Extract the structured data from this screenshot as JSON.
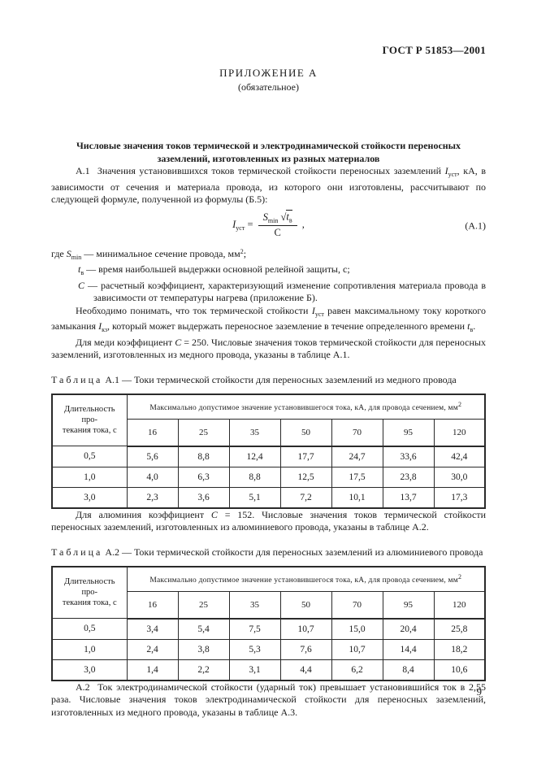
{
  "header": {
    "standard": "ГОСТ Р 51853—2001"
  },
  "appendix": {
    "title": "ПРИЛОЖЕНИЕ А",
    "subtitle": "(обязательное)"
  },
  "section_title": {
    "text": "Числовые значения токов термической и электродинамической стойкости переносных заземлений, изготовленных из разных материалов"
  },
  "para_a1": {
    "p1": "А.1  Значения установившихся токов термической стойкости переносных заземлений ",
    "v1": "I",
    "s1": "уст",
    "p2": ", кА, в зависимости от сечения и материала провода, из которого они изготовлены, рассчитывают по следующей формуле, полученной из формулы (Б.5):"
  },
  "formula": {
    "lhs_var": "I",
    "lhs_sub": "уст",
    "equals": " = ",
    "num_var": "S",
    "num_sub": "min",
    "radical": "√",
    "t_var": "t",
    "t_sub": "в",
    "den": "C",
    "comma": " ,",
    "label": "(А.1)"
  },
  "where": {
    "w1_pre": "где ",
    "w1_var": "S",
    "w1_sub": "min",
    "w1_text": " — минимальное сечение провода, мм",
    "w1_sup": "2",
    "w1_end": ";",
    "w2_var": "t",
    "w2_sub": "в",
    "w2_text": " — время наибольшей выдержки основной релейной защиты, с;",
    "w3_var": "С",
    "w3_text": " — расчетный коэффициент, характеризующий изменение сопротивления материала провода в зависимости от температуры нагрева (приложение Б)."
  },
  "para_note": {
    "p1": "Необходимо понимать, что ток термической стойкости ",
    "v1": "I",
    "s1": "уст",
    "p2": " равен максимальному току короткого замыкания ",
    "v2": "I",
    "s2": "кз",
    "p3": ", который может выдержать переносное заземление в течение определенного времени ",
    "v3": "t",
    "s3": "в",
    "p4": "."
  },
  "para_copper": {
    "p1": "Для меди коэффициент ",
    "v": "С",
    "p2": " = 250. Числовые значения токов термической стойкости для переносных заземлений, изготовленных из медного провода, указаны в таблице А.1."
  },
  "table_a1": {
    "caption_word": "Таблица",
    "caption_num": "А.1",
    "caption_rest": "— Токи термической стойкости для переносных заземлений из медного провода",
    "col0_line1": "Длительность про-",
    "col0_line2": "текания тока, с",
    "span_header": "Максимально допустимое значение установившегося тока, кА, для провода сечением, мм",
    "span_header_sup": "2",
    "sections": [
      "16",
      "25",
      "35",
      "50",
      "70",
      "95",
      "120"
    ],
    "rows": [
      [
        "0,5",
        "5,6",
        "8,8",
        "12,4",
        "17,7",
        "24,7",
        "33,6",
        "42,4"
      ],
      [
        "1,0",
        "4,0",
        "6,3",
        "8,8",
        "12,5",
        "17,5",
        "23,8",
        "30,0"
      ],
      [
        "3,0",
        "2,3",
        "3,6",
        "5,1",
        "7,2",
        "10,1",
        "13,7",
        "17,3"
      ]
    ]
  },
  "para_aluminum": {
    "p1": "Для алюминия коэффициент ",
    "v": "С",
    "p2": " = 152. Числовые значения токов термической стойкости переносных заземлений, изготовленных из алюминиевого провода, указаны в таблице А.2."
  },
  "table_a2": {
    "caption_word": "Таблица",
    "caption_num": "А.2",
    "caption_rest": "— Токи термической стойкости для переносных заземлений из алюминиевого провода",
    "col0_line1": "Длительность про-",
    "col0_line2": "текания тока, с",
    "span_header": "Максимально допустимое значение установившегося тока, кА, для провода сечением, мм",
    "span_header_sup": "2",
    "sections": [
      "16",
      "25",
      "35",
      "50",
      "70",
      "95",
      "120"
    ],
    "rows": [
      [
        "0,5",
        "3,4",
        "5,4",
        "7,5",
        "10,7",
        "15,0",
        "20,4",
        "25,8"
      ],
      [
        "1,0",
        "2,4",
        "3,8",
        "5,3",
        "7,6",
        "10,7",
        "14,4",
        "18,2"
      ],
      [
        "3,0",
        "1,4",
        "2,2",
        "3,1",
        "4,4",
        "6,2",
        "8,4",
        "10,6"
      ]
    ]
  },
  "para_a2": {
    "text": "А.2  Ток электродинамической стойкости (ударный ток) превышает установившийся ток в 2,55 раза. Числовые значения токов электродинамической стойкости для переносных заземлений, изготовленных из медного провода, указаны в таблице А.3."
  },
  "footer": {
    "page_number": "9"
  }
}
